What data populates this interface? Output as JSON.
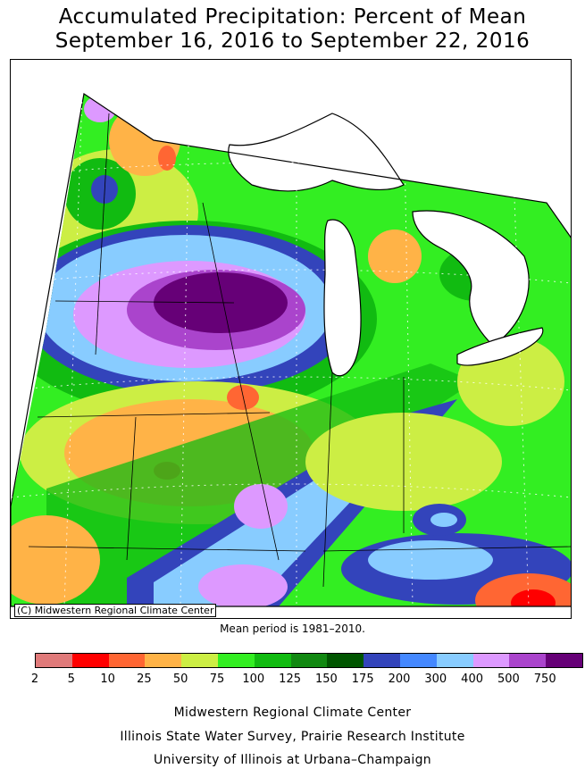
{
  "header": {
    "title": "Accumulated Precipitation: Percent of Mean",
    "subtitle": "September 16, 2016 to September 22, 2016"
  },
  "map": {
    "credit": "(C) Midwestern Regional Climate Center",
    "mean_period": "Mean period is 1981–2010."
  },
  "legend": {
    "labels": [
      "2",
      "5",
      "10",
      "25",
      "50",
      "75",
      "100",
      "125",
      "150",
      "175",
      "200",
      "300",
      "400",
      "500",
      "750"
    ],
    "colors": [
      "#e07a7a",
      "#ff0000",
      "#ff6633",
      "#ffb347",
      "#ccee44",
      "#33ee22",
      "#11bb11",
      "#118811",
      "#005500",
      "#3344bb",
      "#4488ff",
      "#88ccff",
      "#dd99ff",
      "#aa44cc",
      "#660077"
    ]
  },
  "footer": {
    "line1": "Midwestern Regional Climate Center",
    "line2": "Illinois State Water Survey, Prairie Research Institute",
    "line3": "University of Illinois at Urbana–Champaign"
  }
}
